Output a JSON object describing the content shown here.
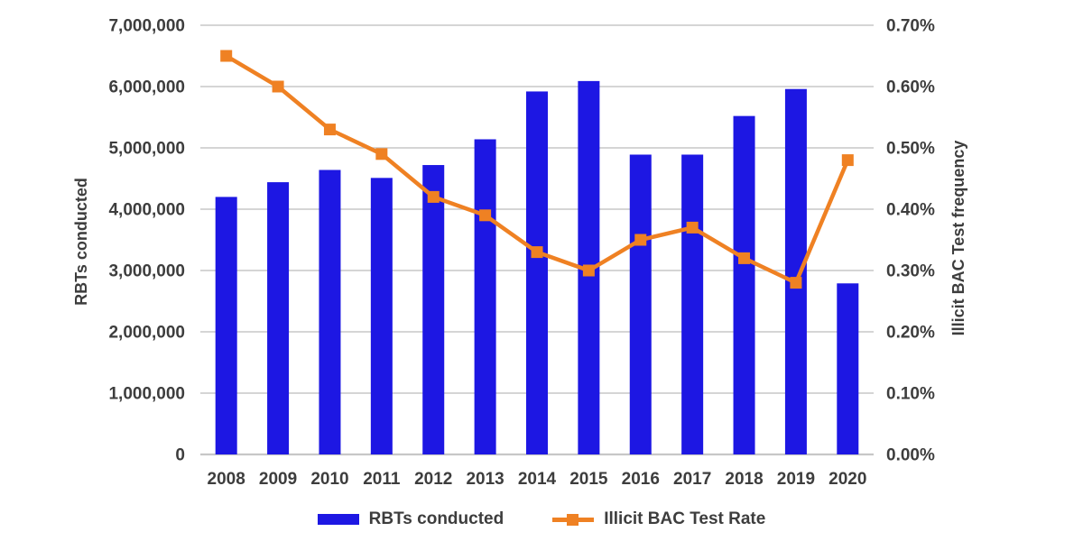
{
  "chart_data": {
    "type": "bar",
    "subtype": "combo-bar-line-dual-axis",
    "categories": [
      "2008",
      "2009",
      "2010",
      "2011",
      "2012",
      "2013",
      "2014",
      "2015",
      "2016",
      "2017",
      "2018",
      "2019",
      "2020"
    ],
    "series": [
      {
        "name": "RBTs conducted",
        "type": "bar",
        "axis": "left",
        "color": "#1d17e3",
        "values": [
          4200000,
          4440000,
          4640000,
          4510000,
          4720000,
          5140000,
          5920000,
          6090000,
          4890000,
          4890000,
          5520000,
          5960000,
          2790000
        ]
      },
      {
        "name": "Illicit BAC Test Rate",
        "type": "line",
        "axis": "right",
        "color": "#ef8123",
        "marker": "square",
        "values_percent": [
          0.65,
          0.6,
          0.53,
          0.49,
          0.42,
          0.39,
          0.33,
          0.3,
          0.35,
          0.37,
          0.32,
          0.28,
          0.48
        ]
      }
    ],
    "left_axis": {
      "title": "RBTs conducted",
      "min": 0,
      "max": 7000000,
      "tick_step": 1000000,
      "tick_labels": [
        "0",
        "1,000,000",
        "2,000,000",
        "3,000,000",
        "4,000,000",
        "5,000,000",
        "6,000,000",
        "7,000,000"
      ]
    },
    "right_axis": {
      "title": "Illicit BAC Test frequency",
      "min": 0,
      "max": 0.7,
      "tick_step": 0.1,
      "tick_labels": [
        "0.00%",
        "0.10%",
        "0.20%",
        "0.30%",
        "0.40%",
        "0.50%",
        "0.60%",
        "0.70%"
      ]
    },
    "grid": "horizontal-on",
    "legend_position": "bottom",
    "colors": {
      "grid": "#c7c7c7",
      "text": "#3d3d3d",
      "background": "#ffffff"
    }
  }
}
